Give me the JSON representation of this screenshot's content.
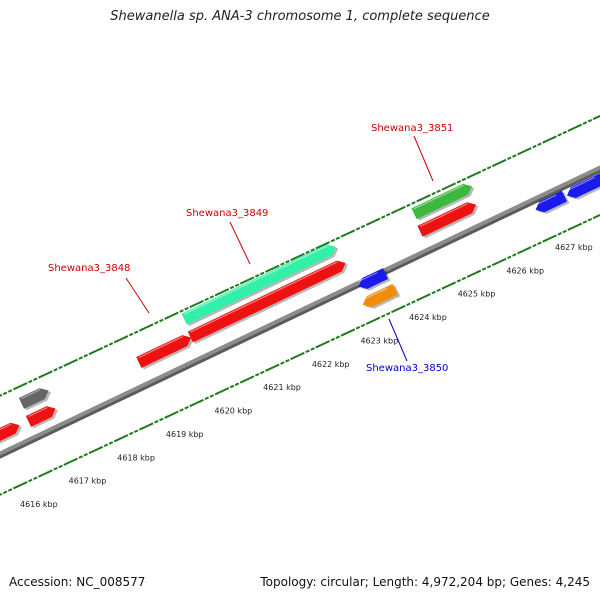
{
  "title": "Shewanella sp. ANA-3 chromosome 1, complete sequence",
  "footer": {
    "accession": "Accession: NC_008577",
    "summary": "Topology: circular; Length: 4,972,204 bp; Genes: 4,245"
  },
  "colors": {
    "backbone": "#8c8c8c",
    "tick": "#1d7a1d",
    "red": "#ee1111",
    "blue": "#1a1aee",
    "green": "#3cb83c",
    "aqua": "#33f0a8",
    "orange": "#f28c0c",
    "gray": "#666666",
    "label_red": "#cc0000",
    "label_blue": "#0000cc"
  },
  "scale_labels": [
    "4616 kbp",
    "4617 kbp",
    "4618 kbp",
    "4619 kbp",
    "4620 kbp",
    "4621 kbp",
    "4622 kbp",
    "4623 kbp",
    "4624 kbp",
    "4625 kbp",
    "4626 kbp",
    "4627 kbp"
  ],
  "gene_labels": [
    {
      "text": "Shewana3_3848",
      "color": "red"
    },
    {
      "text": "Shewana3_3849",
      "color": "red"
    },
    {
      "text": "Shewana3_3851",
      "color": "red"
    },
    {
      "text": "Shewana3_3850",
      "color": "blue"
    }
  ],
  "features": [
    {
      "color": "gray",
      "strand": "forward-outer"
    },
    {
      "color": "red",
      "strand": "forward"
    },
    {
      "color": "red",
      "strand": "forward"
    },
    {
      "color": "red",
      "strand": "forward"
    },
    {
      "color": "aqua",
      "strand": "forward-outer"
    },
    {
      "color": "red",
      "strand": "forward"
    },
    {
      "color": "green",
      "strand": "forward-outer"
    },
    {
      "color": "red",
      "strand": "forward"
    },
    {
      "color": "blue",
      "strand": "reverse"
    },
    {
      "color": "orange",
      "strand": "reverse-outer"
    },
    {
      "color": "blue",
      "strand": "reverse"
    },
    {
      "color": "blue",
      "strand": "reverse"
    }
  ]
}
